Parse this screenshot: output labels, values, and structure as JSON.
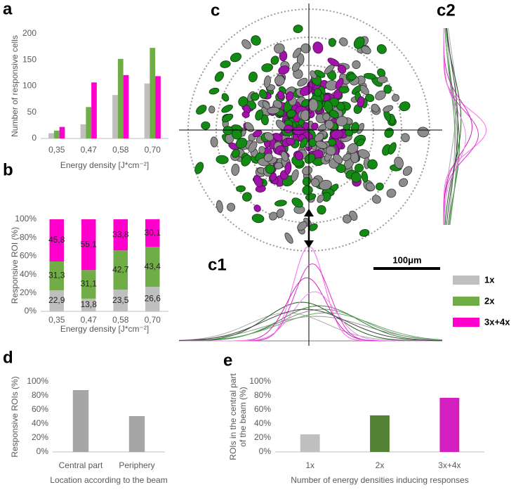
{
  "chart_data": [
    {
      "type": "bar",
      "panel": "a",
      "ylabel": "Number of responsive cells",
      "xlabel": "Energy density [J*cm⁻²]",
      "categories": [
        "0,35",
        "0,47",
        "0,58",
        "0,70"
      ],
      "series": [
        {
          "name": "1x",
          "color": "#bfbfbf",
          "values": [
            10,
            27,
            83,
            105
          ]
        },
        {
          "name": "2x",
          "color": "#70ad47",
          "values": [
            15,
            60,
            152,
            173
          ]
        },
        {
          "name": "3x+4x",
          "color": "#ff00cc",
          "values": [
            22,
            107,
            121,
            119
          ]
        }
      ],
      "ylim": [
        0,
        200
      ],
      "yticks": [
        0,
        50,
        100,
        150,
        200
      ]
    },
    {
      "type": "stacked_bar",
      "panel": "b",
      "ylabel": "Responsive ROI (%)",
      "xlabel": "Energy density [J*cm⁻²]",
      "categories": [
        "0,35",
        "0,47",
        "0,58",
        "0,70"
      ],
      "series": [
        {
          "color": "#bfbfbf",
          "values": [
            22.9,
            13.8,
            23.5,
            26.6
          ],
          "value_labels": [
            "22,9",
            "13,8",
            "23,5",
            "26,6"
          ]
        },
        {
          "color": "#70ad47",
          "values": [
            31.3,
            31.1,
            42.7,
            43.4
          ],
          "value_labels": [
            "31,3",
            "31,1",
            "42,7",
            "43,4"
          ]
        },
        {
          "color": "#ff00cc",
          "values": [
            45.8,
            55.1,
            33.8,
            30.1
          ],
          "value_labels": [
            "45,8",
            "55,1",
            "33,8",
            "30,1"
          ]
        }
      ],
      "ylim": [
        0,
        100
      ],
      "yticks": [
        {
          "value": 0,
          "label": "0%"
        },
        {
          "value": 20,
          "label": "20%"
        },
        {
          "value": 40,
          "label": "40%"
        },
        {
          "value": 60,
          "label": "60%"
        },
        {
          "value": 80,
          "label": "80%"
        },
        {
          "value": 100,
          "label": "100%"
        }
      ]
    },
    {
      "type": "bar",
      "panel": "d",
      "ylabel": "Responsive ROIs (%)",
      "xlabel": "Location according to the beam",
      "categories": [
        "Central part",
        "Periphery"
      ],
      "values": [
        88,
        51
      ],
      "colors": [
        "#a6a6a6",
        "#a6a6a6"
      ],
      "ylim": [
        0,
        100
      ],
      "yticks": [
        {
          "value": 0,
          "label": "0%"
        },
        {
          "value": 20,
          "label": "20%"
        },
        {
          "value": 40,
          "label": "40%"
        },
        {
          "value": 60,
          "label": "60%"
        },
        {
          "value": 80,
          "label": "80%"
        },
        {
          "value": 100,
          "label": "100%"
        }
      ]
    },
    {
      "type": "bar",
      "panel": "e",
      "ylabel": [
        "ROIs in the central part",
        "of the beam (%)"
      ],
      "xlabel": "Number of energy densities inducing responses",
      "categories": [
        "1x",
        "2x",
        "3x+4x"
      ],
      "values": [
        25,
        52,
        77
      ],
      "colors": [
        "#bfbfbf",
        "#548235",
        "#d41fc0"
      ],
      "ylim": [
        0,
        100
      ],
      "yticks": [
        {
          "value": 0,
          "label": "0%"
        },
        {
          "value": 20,
          "label": "20%"
        },
        {
          "value": 40,
          "label": "40%"
        },
        {
          "value": 60,
          "label": "60%"
        },
        {
          "value": 80,
          "label": "80%"
        },
        {
          "value": 100,
          "label": "100%"
        }
      ]
    }
  ],
  "figure": {
    "panel_labels": [
      "c",
      "c1",
      "c2"
    ],
    "scale_bar": "100μm"
  }
}
